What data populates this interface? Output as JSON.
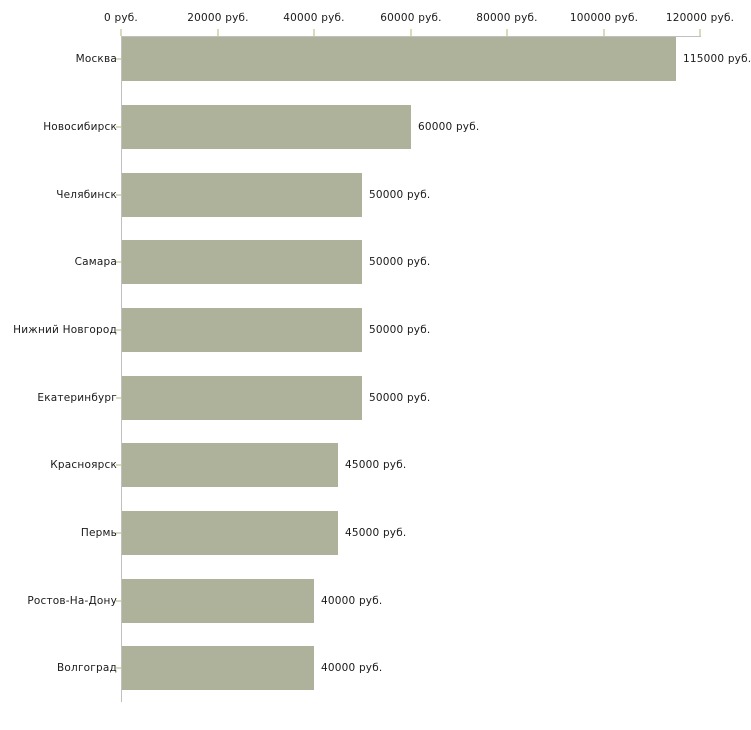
{
  "chart_data": {
    "type": "bar",
    "orientation": "horizontal",
    "title": "",
    "xlabel": "",
    "ylabel": "",
    "categories": [
      "Москва",
      "Новосибирск",
      "Челябинск",
      "Самара",
      "Нижний Новгород",
      "Екатеринбург",
      "Красноярск",
      "Пермь",
      "Ростов-На-Дону",
      "Волгоград"
    ],
    "values": [
      115000,
      60000,
      50000,
      50000,
      50000,
      50000,
      45000,
      45000,
      40000,
      40000
    ],
    "value_labels": [
      "115000 руб.",
      "60000 руб.",
      "50000 руб.",
      "50000 руб.",
      "50000 руб.",
      "50000 руб.",
      "45000 руб.",
      "45000 руб.",
      "40000 руб.",
      "40000 руб."
    ],
    "x_axis": {
      "position": "top",
      "range": [
        0,
        120000
      ],
      "ticks": [
        0,
        20000,
        40000,
        60000,
        80000,
        100000,
        120000
      ],
      "tick_labels": [
        "0 руб.",
        "20000 руб.",
        "40000 руб.",
        "60000 руб.",
        "80000 руб.",
        "100000 руб.",
        "120000 руб."
      ]
    },
    "grid": false,
    "legend": null,
    "colors": {
      "bar": "#aeb29a",
      "tick": "#d8dcba",
      "axis": "#c0c0c0",
      "text": "#1a1a1a",
      "background": "#ffffff"
    }
  }
}
